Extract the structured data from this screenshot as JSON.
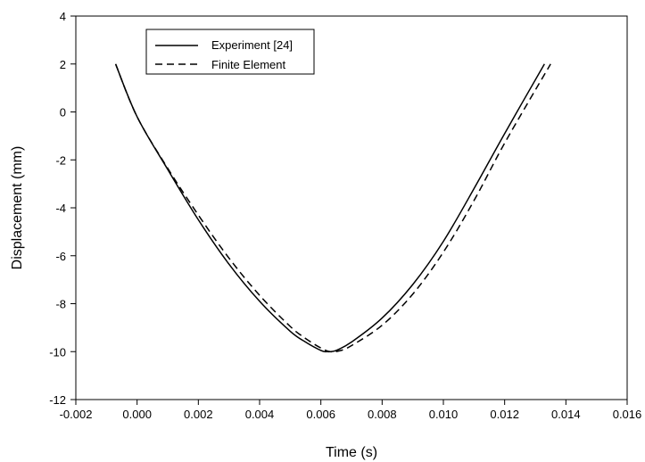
{
  "chart_data": {
    "type": "line",
    "title": "",
    "xlabel": "Time (s)",
    "ylabel": "Displacement (mm)",
    "xlim": [
      -0.002,
      0.016
    ],
    "ylim": [
      -12,
      4
    ],
    "xticks": [
      -0.002,
      0.0,
      0.002,
      0.004,
      0.006,
      0.008,
      0.01,
      0.012,
      0.014,
      0.016
    ],
    "xtick_labels": [
      "-0.002",
      "0.000",
      "0.002",
      "0.004",
      "0.006",
      "0.008",
      "0.010",
      "0.012",
      "0.014",
      "0.016"
    ],
    "yticks": [
      4,
      2,
      0,
      -2,
      -4,
      -6,
      -8,
      -10,
      -12
    ],
    "ytick_labels": [
      "4",
      "2",
      "0",
      "-2",
      "-4",
      "-6",
      "-8",
      "-10",
      "-12"
    ],
    "grid": false,
    "legend_position": "top-left",
    "series": [
      {
        "name": "Experiment [24]",
        "style": "solid",
        "color": "#000000",
        "x": [
          -0.0007,
          0.0,
          0.001,
          0.002,
          0.003,
          0.004,
          0.005,
          0.0055,
          0.006,
          0.0062,
          0.0065,
          0.007,
          0.008,
          0.009,
          0.01,
          0.011,
          0.012,
          0.0133
        ],
        "y": [
          2.0,
          -0.2,
          -2.4,
          -4.5,
          -6.35,
          -7.9,
          -9.15,
          -9.6,
          -9.95,
          -10.0,
          -9.95,
          -9.6,
          -8.6,
          -7.2,
          -5.4,
          -3.2,
          -0.9,
          2.0
        ]
      },
      {
        "name": "Finite Element",
        "style": "dashed",
        "color": "#000000",
        "x": [
          -0.0007,
          0.0,
          0.001,
          0.002,
          0.003,
          0.004,
          0.005,
          0.0055,
          0.006,
          0.0063,
          0.0066,
          0.007,
          0.008,
          0.009,
          0.01,
          0.011,
          0.012,
          0.0135
        ],
        "y": [
          2.0,
          -0.2,
          -2.35,
          -4.3,
          -6.1,
          -7.65,
          -8.95,
          -9.45,
          -9.85,
          -10.0,
          -9.97,
          -9.75,
          -8.9,
          -7.6,
          -5.85,
          -3.7,
          -1.3,
          2.0
        ]
      }
    ]
  }
}
